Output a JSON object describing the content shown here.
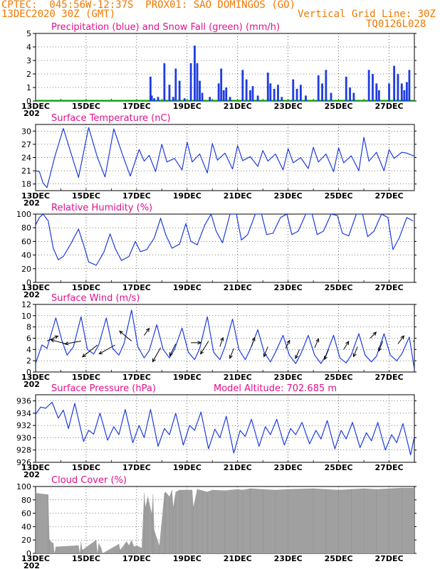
{
  "header": {
    "line1": "CPTEC:  045:56W-12:37S  PROX01: SAO DOMINGOS (GO)",
    "date": "13DEC2020 30Z (GMT)",
    "grid_note": "Vertical Grid Line: 30Z",
    "model_code": "TQ0126L028"
  },
  "x_axis": {
    "labels": [
      "13DEC",
      "15DEC",
      "17DEC",
      "19DEC",
      "21DEC",
      "23DEC",
      "25DEC",
      "27DEC"
    ],
    "year_label": "202",
    "days": 15
  },
  "colors": {
    "header": "#f07800",
    "title": "#e0108c",
    "line": "#1e3ce0",
    "precip": "#1e3ce0",
    "snow": "#00a000",
    "cloud": "#a0a0a0",
    "wind_arrow": "#000000"
  },
  "panels": {
    "precip": {
      "title": "Precipitation (blue) and Snow Fall (green) (mm/h)",
      "yticks": [
        "0",
        "1",
        "2",
        "3",
        "4",
        "5"
      ]
    },
    "temperature": {
      "title": "Surface Temperature (nC)",
      "yticks": [
        "18",
        "21",
        "24",
        "27",
        "30"
      ]
    },
    "humidity": {
      "title": "Relative Humidity (%)",
      "yticks": [
        "0",
        "20",
        "40",
        "60",
        "80",
        "100"
      ]
    },
    "wind": {
      "title": "Surface Wind (m/s)",
      "yticks": [
        "0",
        "2",
        "4",
        "6",
        "8",
        "10",
        "12"
      ]
    },
    "pressure": {
      "title": "Surface Pressure (hPa)",
      "altitude_label": "Model Altitude: 702.685 m",
      "yticks": [
        "926",
        "928",
        "930",
        "932",
        "934",
        "936"
      ]
    },
    "cloud": {
      "title": "Cloud Cover (%)",
      "yticks": [
        "0",
        "20",
        "40",
        "60",
        "80",
        "100"
      ]
    }
  },
  "chart_data": [
    {
      "type": "bar",
      "title": "Precipitation (blue) and Snow Fall (green) (mm/h)",
      "x_unit": "days since 13DEC",
      "ylim": [
        0,
        5
      ],
      "x": [
        4.55,
        4.6,
        4.7,
        4.85,
        5.1,
        5.3,
        5.45,
        5.55,
        5.7,
        5.9,
        6.15,
        6.3,
        6.4,
        6.5,
        6.6,
        6.9,
        7.25,
        7.35,
        7.45,
        7.55,
        7.7,
        8.2,
        8.35,
        8.5,
        8.6,
        8.8,
        9.2,
        9.3,
        9.45,
        9.6,
        9.75,
        10.2,
        10.35,
        10.5,
        10.7,
        11.2,
        11.35,
        11.5,
        11.7,
        12.3,
        12.45,
        12.6,
        13.2,
        13.35,
        13.5,
        13.6,
        14.0,
        14.2,
        14.35,
        14.5,
        14.6,
        14.7,
        14.8
      ],
      "values": [
        1.8,
        0.4,
        0.2,
        0.3,
        2.8,
        1.2,
        0.3,
        2.4,
        1.5,
        0.2,
        2.8,
        4.1,
        2.8,
        1.5,
        0.6,
        0.3,
        1.3,
        2.4,
        0.8,
        1.0,
        0.3,
        2.3,
        1.6,
        0.8,
        1.1,
        0.4,
        2.1,
        1.3,
        0.9,
        1.2,
        0.3,
        1.6,
        0.9,
        1.2,
        0.4,
        1.9,
        1.3,
        2.3,
        0.6,
        1.8,
        1.0,
        0.6,
        2.3,
        2.0,
        1.3,
        0.8,
        1.3,
        2.6,
        2.0,
        1.3,
        0.8,
        1.4,
        2.3
      ],
      "snow_values": []
    },
    {
      "type": "line",
      "title": "Surface Temperature (nC)",
      "x_unit": "days since 13DEC",
      "ylim": [
        16.5,
        31.5
      ],
      "x": [
        0,
        0.15,
        0.3,
        0.45,
        0.75,
        1.1,
        1.4,
        1.7,
        2.1,
        2.45,
        2.75,
        3.1,
        3.45,
        3.75,
        4.1,
        4.3,
        4.5,
        4.75,
        5.0,
        5.2,
        5.5,
        5.8,
        6.0,
        6.2,
        6.5,
        6.8,
        7.0,
        7.2,
        7.5,
        7.8,
        8.0,
        8.2,
        8.5,
        8.8,
        9.0,
        9.2,
        9.5,
        9.8,
        10.0,
        10.2,
        10.5,
        10.8,
        11.0,
        11.2,
        11.5,
        11.8,
        12.0,
        12.2,
        12.5,
        12.8,
        13.0,
        13.2,
        13.5,
        13.8,
        14.0,
        14.2,
        14.5,
        14.7,
        15.0
      ],
      "values": [
        21,
        20.8,
        18.2,
        17.2,
        24,
        30.6,
        25,
        19.5,
        30.8,
        24,
        19.6,
        30.5,
        24.5,
        19.8,
        25.8,
        23.2,
        24.5,
        20.8,
        27,
        23,
        23.8,
        21.2,
        27.5,
        23,
        24.8,
        20.5,
        27.2,
        23.4,
        25,
        21.4,
        26.7,
        23.3,
        24.2,
        22.0,
        25.6,
        23.2,
        24.8,
        21.2,
        26.0,
        22.8,
        24.0,
        21.5,
        26.3,
        23.0,
        24.8,
        20.8,
        26.2,
        22.8,
        24.4,
        21.0,
        28.6,
        23.2,
        25.2,
        21.0,
        25.8,
        23.8,
        25.2,
        25.0,
        24.3
      ]
    },
    {
      "type": "line",
      "title": "Relative Humidity (%)",
      "x_unit": "days since 13DEC",
      "ylim": [
        0,
        100
      ],
      "x": [
        0,
        0.15,
        0.3,
        0.5,
        0.7,
        0.9,
        1.1,
        1.4,
        1.7,
        1.9,
        2.1,
        2.4,
        2.7,
        2.95,
        3.15,
        3.4,
        3.7,
        3.95,
        4.15,
        4.4,
        4.7,
        4.95,
        5.15,
        5.4,
        5.7,
        5.95,
        6.15,
        6.4,
        6.7,
        6.95,
        7.15,
        7.4,
        7.7,
        7.95,
        8.15,
        8.4,
        8.7,
        8.95,
        9.15,
        9.4,
        9.7,
        9.95,
        10.15,
        10.4,
        10.7,
        10.95,
        11.15,
        11.4,
        11.7,
        11.95,
        12.15,
        12.4,
        12.7,
        12.95,
        13.15,
        13.4,
        13.7,
        13.95,
        14.15,
        14.4,
        14.7,
        14.95
      ],
      "values": [
        84,
        95,
        100,
        90,
        50,
        33,
        38,
        57,
        78,
        55,
        30,
        25,
        44,
        71,
        50,
        32,
        38,
        60,
        45,
        48,
        65,
        94,
        70,
        50,
        56,
        86,
        60,
        55,
        84,
        100,
        75,
        58,
        100,
        100,
        62,
        70,
        100,
        100,
        70,
        72,
        95,
        100,
        70,
        75,
        100,
        100,
        70,
        75,
        100,
        98,
        72,
        68,
        100,
        100,
        67,
        75,
        100,
        95,
        48,
        65,
        95,
        90
      ]
    },
    {
      "type": "line",
      "title": "Surface Wind (m/s)",
      "x_unit": "days since 13DEC",
      "ylim": [
        0,
        12
      ],
      "x": [
        0,
        0.25,
        0.45,
        0.8,
        1.05,
        1.25,
        1.5,
        1.8,
        2.05,
        2.3,
        2.5,
        2.8,
        3.05,
        3.3,
        3.5,
        3.8,
        4.05,
        4.3,
        4.5,
        4.8,
        5.05,
        5.3,
        5.5,
        5.8,
        6.05,
        6.3,
        6.5,
        6.8,
        7.05,
        7.3,
        7.5,
        7.8,
        8.05,
        8.3,
        8.5,
        8.8,
        9.05,
        9.3,
        9.5,
        9.8,
        10.05,
        10.3,
        10.5,
        10.8,
        11.05,
        11.3,
        11.5,
        11.8,
        12.05,
        12.3,
        12.5,
        12.8,
        13.05,
        13.3,
        13.5,
        13.8,
        14.05,
        14.3,
        14.5,
        14.8,
        15.0
      ],
      "values": [
        1.5,
        4.8,
        4.2,
        9.6,
        5.5,
        3.0,
        4.5,
        9.8,
        4.0,
        3.2,
        4.8,
        9.6,
        4.2,
        3.0,
        5.0,
        11.0,
        4.5,
        2.5,
        3.8,
        8.4,
        4.0,
        2.5,
        4.0,
        7.8,
        3.5,
        2.2,
        4.2,
        9.8,
        3.5,
        2.2,
        4.5,
        9.4,
        4.0,
        2.2,
        4.0,
        7.5,
        3.5,
        1.8,
        3.5,
        6.5,
        3.0,
        1.5,
        3.2,
        6.5,
        3.0,
        1.5,
        3.0,
        6.5,
        2.5,
        1.6,
        3.0,
        6.8,
        3.0,
        1.8,
        2.8,
        6.8,
        3.0,
        2.0,
        3.2,
        6.2,
        0.5
      ],
      "arrows": [
        {
          "x": 0.45,
          "speed": 5.5,
          "dx": 1.1,
          "dy": -0.5
        },
        {
          "x": 1.2,
          "speed": 5.0,
          "dx": -1.5,
          "dy": -0.4
        },
        {
          "x": 1.8,
          "speed": 5.5,
          "dx": -1.6,
          "dy": 0.3
        },
        {
          "x": 2.45,
          "speed": 4.8,
          "dx": -1.5,
          "dy": 1.2
        },
        {
          "x": 3.15,
          "speed": 4.8,
          "dx": -1.6,
          "dy": 0.9
        },
        {
          "x": 3.8,
          "speed": 5.5,
          "dx": -1.2,
          "dy": -1.0
        },
        {
          "x": 4.3,
          "speed": 6.5,
          "dx": 0.5,
          "dy": -0.7
        },
        {
          "x": 4.95,
          "speed": 4.3,
          "dx": -0.8,
          "dy": 1.4
        },
        {
          "x": 5.55,
          "speed": 5.0,
          "dx": -0.6,
          "dy": 1.2
        },
        {
          "x": 6.15,
          "speed": 5.2,
          "dx": 1.0,
          "dy": 0.0
        },
        {
          "x": 6.85,
          "speed": 5.5,
          "dx": -0.8,
          "dy": 1.3
        },
        {
          "x": 7.3,
          "speed": 4.5,
          "dx": 0.3,
          "dy": -0.9
        },
        {
          "x": 7.85,
          "speed": 4.2,
          "dx": -0.4,
          "dy": 1.0
        },
        {
          "x": 8.55,
          "speed": 4.5,
          "dx": 0.3,
          "dy": -0.9
        },
        {
          "x": 9.2,
          "speed": 4.5,
          "dx": -0.4,
          "dy": 1.0
        },
        {
          "x": 9.9,
          "speed": 4.2,
          "dx": 0.4,
          "dy": -0.8
        },
        {
          "x": 10.45,
          "speed": 4.0,
          "dx": -0.4,
          "dy": 0.9
        },
        {
          "x": 11.05,
          "speed": 4.3,
          "dx": 0.4,
          "dy": -0.9
        },
        {
          "x": 11.6,
          "speed": 4.0,
          "dx": -0.4,
          "dy": 1.0
        },
        {
          "x": 12.2,
          "speed": 4.0,
          "dx": 0.5,
          "dy": -0.8
        },
        {
          "x": 12.75,
          "speed": 4.5,
          "dx": -0.4,
          "dy": 1.0
        },
        {
          "x": 13.25,
          "speed": 6.0,
          "dx": 0.6,
          "dy": -0.6
        },
        {
          "x": 13.75,
          "speed": 5.5,
          "dx": -0.4,
          "dy": 1.0
        },
        {
          "x": 14.35,
          "speed": 5.0,
          "dx": 0.6,
          "dy": -0.8
        },
        {
          "x": 14.95,
          "speed": 5.5,
          "dx": 0.8,
          "dy": 0.4
        }
      ]
    },
    {
      "type": "line",
      "title": "Surface Pressure (hPa)",
      "x_unit": "days since 13DEC",
      "ylim": [
        926,
        937
      ],
      "x": [
        0,
        0.2,
        0.4,
        0.65,
        0.9,
        1.1,
        1.3,
        1.55,
        1.9,
        2.1,
        2.3,
        2.55,
        2.85,
        3.1,
        3.3,
        3.55,
        3.85,
        4.1,
        4.3,
        4.55,
        4.85,
        5.1,
        5.3,
        5.55,
        5.85,
        6.1,
        6.3,
        6.55,
        6.85,
        7.1,
        7.3,
        7.55,
        7.85,
        8.1,
        8.3,
        8.55,
        8.85,
        9.1,
        9.3,
        9.55,
        9.85,
        10.1,
        10.3,
        10.55,
        10.85,
        11.1,
        11.3,
        11.55,
        11.85,
        12.1,
        12.3,
        12.55,
        12.85,
        13.1,
        13.3,
        13.55,
        13.85,
        14.1,
        14.3,
        14.55,
        14.85,
        15.0
      ],
      "values": [
        933.8,
        935,
        934.8,
        935.8,
        933.2,
        934.5,
        931.5,
        935.6,
        929.4,
        931.2,
        930.6,
        934,
        929.6,
        931.8,
        930.5,
        934.6,
        929.2,
        932.0,
        930.0,
        934.6,
        928.6,
        931.5,
        930.5,
        934.0,
        928.8,
        932.0,
        931.2,
        934.2,
        928.2,
        931.4,
        930.0,
        933.5,
        927.5,
        931.2,
        930.2,
        933.0,
        928.6,
        931.8,
        930.5,
        933.0,
        928.8,
        931.5,
        930.5,
        932.5,
        929.0,
        931.2,
        929.8,
        932.8,
        928.2,
        931.2,
        929.8,
        932.5,
        928.4,
        930.8,
        929.5,
        932.5,
        928.0,
        930.5,
        929.2,
        932.3,
        927.2,
        930.2
      ]
    },
    {
      "type": "area",
      "title": "Cloud Cover (%)",
      "x_unit": "days since 13DEC",
      "ylim": [
        0,
        100
      ],
      "x": [
        0,
        0.05,
        0.5,
        0.55,
        0.7,
        0.75,
        0.8,
        1.7,
        1.75,
        1.8,
        1.85,
        2.4,
        2.45,
        2.5,
        2.6,
        2.65,
        3.3,
        3.35,
        3.6,
        3.7,
        3.8,
        3.9,
        4.0,
        4.2,
        4.3,
        4.35,
        4.45,
        4.6,
        4.65,
        4.7,
        4.9,
        5.1,
        5.15,
        5.3,
        5.4,
        5.45,
        5.55,
        5.7,
        5.8,
        6.2,
        6.25,
        6.4,
        6.6,
        6.8,
        7.0,
        7.5,
        8.0,
        8.2,
        8.5,
        9.0,
        9.5,
        10.0,
        11.0,
        11.5,
        12.0,
        12.5,
        13.0,
        13.5,
        14.0,
        14.5,
        15.0
      ],
      "values": [
        92,
        90,
        88,
        20,
        15,
        0,
        10,
        12,
        0,
        18,
        5,
        20,
        0,
        15,
        8,
        0,
        14,
        5,
        18,
        12,
        20,
        10,
        12,
        8,
        90,
        70,
        85,
        60,
        88,
        35,
        12,
        90,
        92,
        85,
        95,
        70,
        92,
        95,
        95,
        95,
        70,
        96,
        94,
        92,
        95,
        94,
        96,
        95,
        97,
        96,
        95,
        96,
        97,
        96,
        95,
        96,
        97,
        96,
        97,
        98,
        98
      ]
    }
  ]
}
